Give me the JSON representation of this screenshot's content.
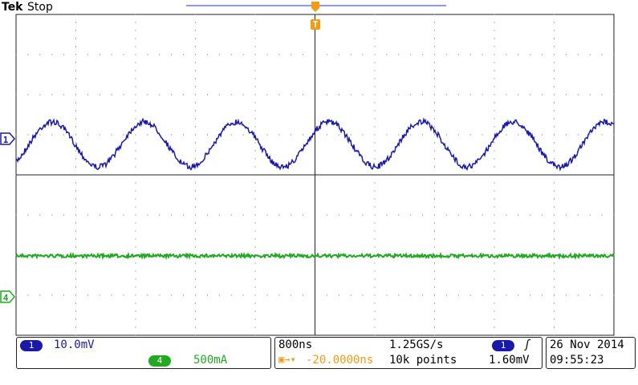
{
  "header": {
    "brand": "Tek",
    "status": "Stop"
  },
  "markers": {
    "trigger": "T",
    "ch1": "1",
    "ch4": "4"
  },
  "channels": [
    {
      "badge": "1",
      "scale": "10.0mV"
    },
    {
      "badge": "4",
      "scale": "500mA"
    }
  ],
  "timebase": {
    "scale": "800ns",
    "sample_rate": "1.25GS/s",
    "position": "-20.0000ns",
    "record_length": "10k points"
  },
  "trigger": {
    "source": "1",
    "level": "1.60mV"
  },
  "datetime": {
    "date": "26 Nov 2014",
    "time": "09:55:23"
  }
}
